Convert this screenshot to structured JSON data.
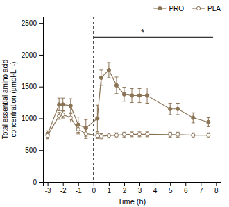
{
  "chart_data": {
    "type": "line",
    "x": [
      -3,
      -2.25,
      -2,
      -1.5,
      -1,
      -0.5,
      0.25,
      0.5,
      1,
      1.5,
      2,
      2.5,
      3,
      3.5,
      5,
      5.5,
      6.5,
      7.5
    ],
    "series": [
      {
        "name": "PRO",
        "color": "#8B7355",
        "marker": "circle",
        "values": [
          750,
          1220,
          1220,
          1200,
          900,
          850,
          1000,
          1640,
          1760,
          1520,
          1380,
          1360,
          1360,
          1360,
          1150,
          1150,
          1010,
          940
        ],
        "errors": [
          55,
          100,
          100,
          110,
          120,
          130,
          210,
          120,
          120,
          130,
          110,
          110,
          110,
          120,
          90,
          90,
          80,
          70
        ]
      },
      {
        "name": "PLA",
        "color": "#8B7355",
        "marker": "open-circle",
        "values": [
          730,
          1040,
          1060,
          1010,
          830,
          760,
          730,
          720,
          730,
          735,
          745,
          750,
          750,
          750,
          745,
          745,
          735,
          735
        ],
        "errors": [
          50,
          55,
          55,
          65,
          75,
          75,
          45,
          40,
          38,
          38,
          38,
          38,
          38,
          38,
          38,
          38,
          38,
          38
        ]
      }
    ],
    "xlim": [
      -3.3,
      8.3
    ],
    "ylim": [
      0,
      2600
    ],
    "xticks": [
      -3,
      -2,
      -1,
      0,
      1,
      2,
      3,
      4,
      5,
      6,
      7,
      8
    ],
    "yticks": [
      0,
      500,
      1000,
      1500,
      2000,
      2500
    ],
    "xlabel": "Time (h)",
    "ylabel": "Total essential amino acid\nconcentration (μmol·L⁻¹)",
    "annotations": [
      {
        "type": "vline",
        "x": 0,
        "line_style": "dashed",
        "color": "#000000"
      },
      {
        "type": "bracket",
        "x": [
          0.0,
          7.8
        ],
        "y": 2280,
        "color": "#000000"
      },
      {
        "type": "text",
        "text": "*",
        "x": 3.2,
        "y": 2300,
        "color": "#000000"
      }
    ],
    "legend": "top-right",
    "grid": false
  }
}
